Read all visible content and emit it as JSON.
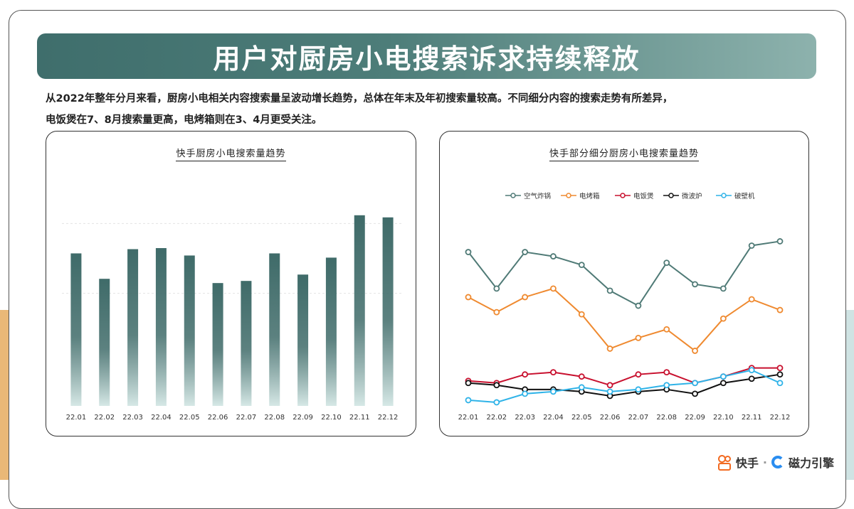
{
  "banner": {
    "title": "用户对厨房小电搜索诉求持续释放"
  },
  "description": {
    "line1": "从2022年整年分月来看，厨房小电相关内容搜索量呈波动增长趋势，总体在年末及年初搜索量较高。不同细分内容的搜索走势有所差异，",
    "line2": "电饭煲在7、8月搜索量更高，电烤箱则在3、4月更受关注。"
  },
  "footer": {
    "kuaishou": "快手",
    "separator": "·",
    "cili": "磁力引擎"
  },
  "colors": {
    "bar_top": "#3f6b69",
    "bar_bottom": "#d6e8e6",
    "air_fryer": "#4f7a76",
    "oven": "#ef8a30",
    "rice_cooker": "#c8102e",
    "microwave": "#111111",
    "blender": "#2fb3e8"
  },
  "chart_data": [
    {
      "type": "bar",
      "title": "快手厨房小电搜索量趋势",
      "categories": [
        "22.01",
        "22.02",
        "22.03",
        "22.04",
        "22.05",
        "22.06",
        "22.07",
        "22.08",
        "22.09",
        "22.10",
        "22.11",
        "22.12"
      ],
      "values": [
        72,
        60,
        74,
        74.5,
        71,
        58,
        59,
        72,
        62,
        70,
        90,
        89
      ],
      "ylim": [
        0,
        100
      ],
      "grid": true,
      "xlabel": "",
      "ylabel": ""
    },
    {
      "type": "line",
      "title": "快手部分细分厨房小电搜索量趋势",
      "categories": [
        "22.01",
        "22.02",
        "22.03",
        "22.04",
        "22.05",
        "22.06",
        "22.07",
        "22.08",
        "22.09",
        "22.10",
        "22.11",
        "22.12"
      ],
      "series": [
        {
          "name": "空气炸锅",
          "color": "#4f7a76",
          "values": [
            73,
            56,
            73,
            71,
            67,
            55,
            48,
            68,
            58,
            56,
            76,
            78
          ]
        },
        {
          "name": "电烤箱",
          "color": "#ef8a30",
          "values": [
            52,
            45,
            52,
            56,
            44,
            28,
            33,
            37,
            27,
            42,
            51,
            46
          ]
        },
        {
          "name": "电饭煲",
          "color": "#c8102e",
          "values": [
            13,
            12,
            16,
            17,
            15,
            11,
            16,
            17,
            12,
            15,
            19,
            19
          ]
        },
        {
          "name": "微波炉",
          "color": "#111111",
          "values": [
            12,
            11,
            9,
            9,
            8,
            6,
            8,
            9,
            7,
            12,
            14,
            16
          ]
        },
        {
          "name": "破壁机",
          "color": "#2fb3e8",
          "values": [
            4,
            3,
            7,
            8,
            10,
            8,
            9,
            11,
            12,
            15,
            18,
            12
          ]
        }
      ],
      "ylim": [
        0,
        100
      ],
      "legend": "top",
      "xlabel": "",
      "ylabel": ""
    }
  ]
}
